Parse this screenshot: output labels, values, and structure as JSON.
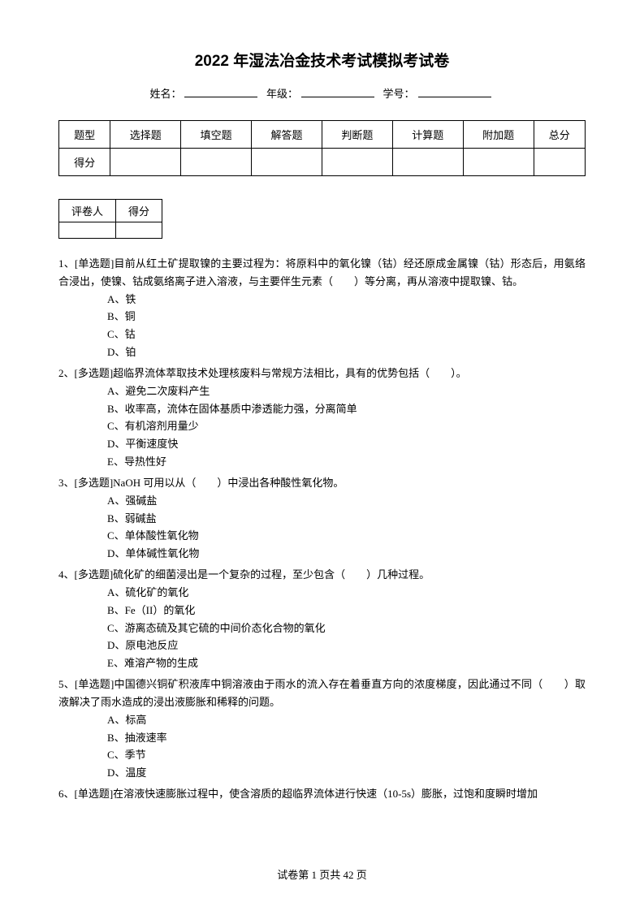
{
  "title": "2022 年湿法冶金技术考试模拟考试卷",
  "info": {
    "name_label": "姓名：",
    "grade_label": "年级：",
    "id_label": "学号："
  },
  "score_table": {
    "headers": [
      "题型",
      "选择题",
      "填空题",
      "解答题",
      "判断题",
      "计算题",
      "附加题",
      "总分"
    ],
    "row_label": "得分"
  },
  "grader_table": {
    "reviewer": "评卷人",
    "score": "得分"
  },
  "questions": [
    {
      "num": "1、",
      "type": "[单选题]",
      "text": "目前从红土矿提取镍的主要过程为：将原料中的氧化镍（钴）经还原成金属镍（钴）形态后，用氨络合浸出，使镍、钴成氨络离子进入溶液，与主要伴生元素（　　）等分离，再从溶液中提取镍、钴。",
      "options": [
        "A、铁",
        "B、铜",
        "C、钴",
        "D、铂"
      ]
    },
    {
      "num": "2、",
      "type": "[多选题]",
      "text": "超临界流体萃取技术处理核废料与常规方法相比，具有的优势包括（　　）。",
      "options": [
        "A、避免二次废料产生",
        "B、收率高，流体在固体基质中渗透能力强，分离简单",
        "C、有机溶剂用量少",
        "D、平衡速度快",
        "E、导热性好"
      ]
    },
    {
      "num": "3、",
      "type": "[多选题]",
      "text": "NaOH 可用以从（　　）中浸出各种酸性氧化物。",
      "options": [
        "A、强碱盐",
        "B、弱碱盐",
        "C、单体酸性氧化物",
        "D、单体碱性氧化物"
      ]
    },
    {
      "num": "4、",
      "type": "[多选题]",
      "text": "硫化矿的细菌浸出是一个复杂的过程，至少包含（　　）几种过程。",
      "options": [
        "A、硫化矿的氧化",
        "B、Fe（II）的氧化",
        "C、游离态硫及其它硫的中间价态化合物的氧化",
        "D、原电池反应",
        "E、难溶产物的生成"
      ]
    },
    {
      "num": "5、",
      "type": "[单选题]",
      "text": "中国德兴铜矿积液库中铜溶液由于雨水的流入存在着垂直方向的浓度梯度，因此通过不同（　　）取液解决了雨水造成的浸出液膨胀和稀释的问题。",
      "options": [
        "A、标高",
        "B、抽液速率",
        "C、季节",
        "D、温度"
      ]
    },
    {
      "num": "6、",
      "type": "[单选题]",
      "text": "在溶液快速膨胀过程中，使含溶质的超临界流体进行快速（10-5s）膨胀，过饱和度瞬时增加",
      "options": []
    }
  ],
  "footer": {
    "text": "试卷第 1 页共 42 页"
  }
}
